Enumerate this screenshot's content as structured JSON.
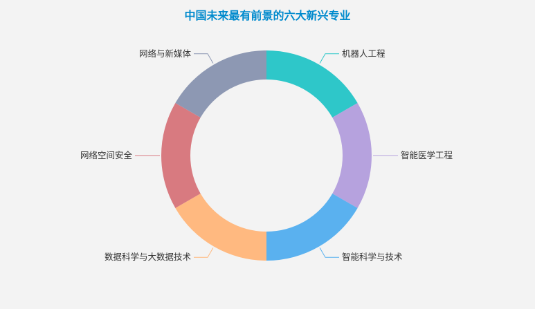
{
  "chart_data": {
    "type": "pie",
    "variant": "donut",
    "title": "中国未来最有前景的六大新兴专业",
    "categories": [
      "机器人工程",
      "智能医学工程",
      "智能科学与技术",
      "数据科学与大数据技术",
      "网络空间安全",
      "网络与新媒体"
    ],
    "values": [
      1,
      1,
      1,
      1,
      1,
      1
    ],
    "colors": [
      "#2ec7c9",
      "#b6a2de",
      "#5ab1ef",
      "#ffb980",
      "#d87a80",
      "#8d98b3"
    ],
    "legend": "none"
  }
}
